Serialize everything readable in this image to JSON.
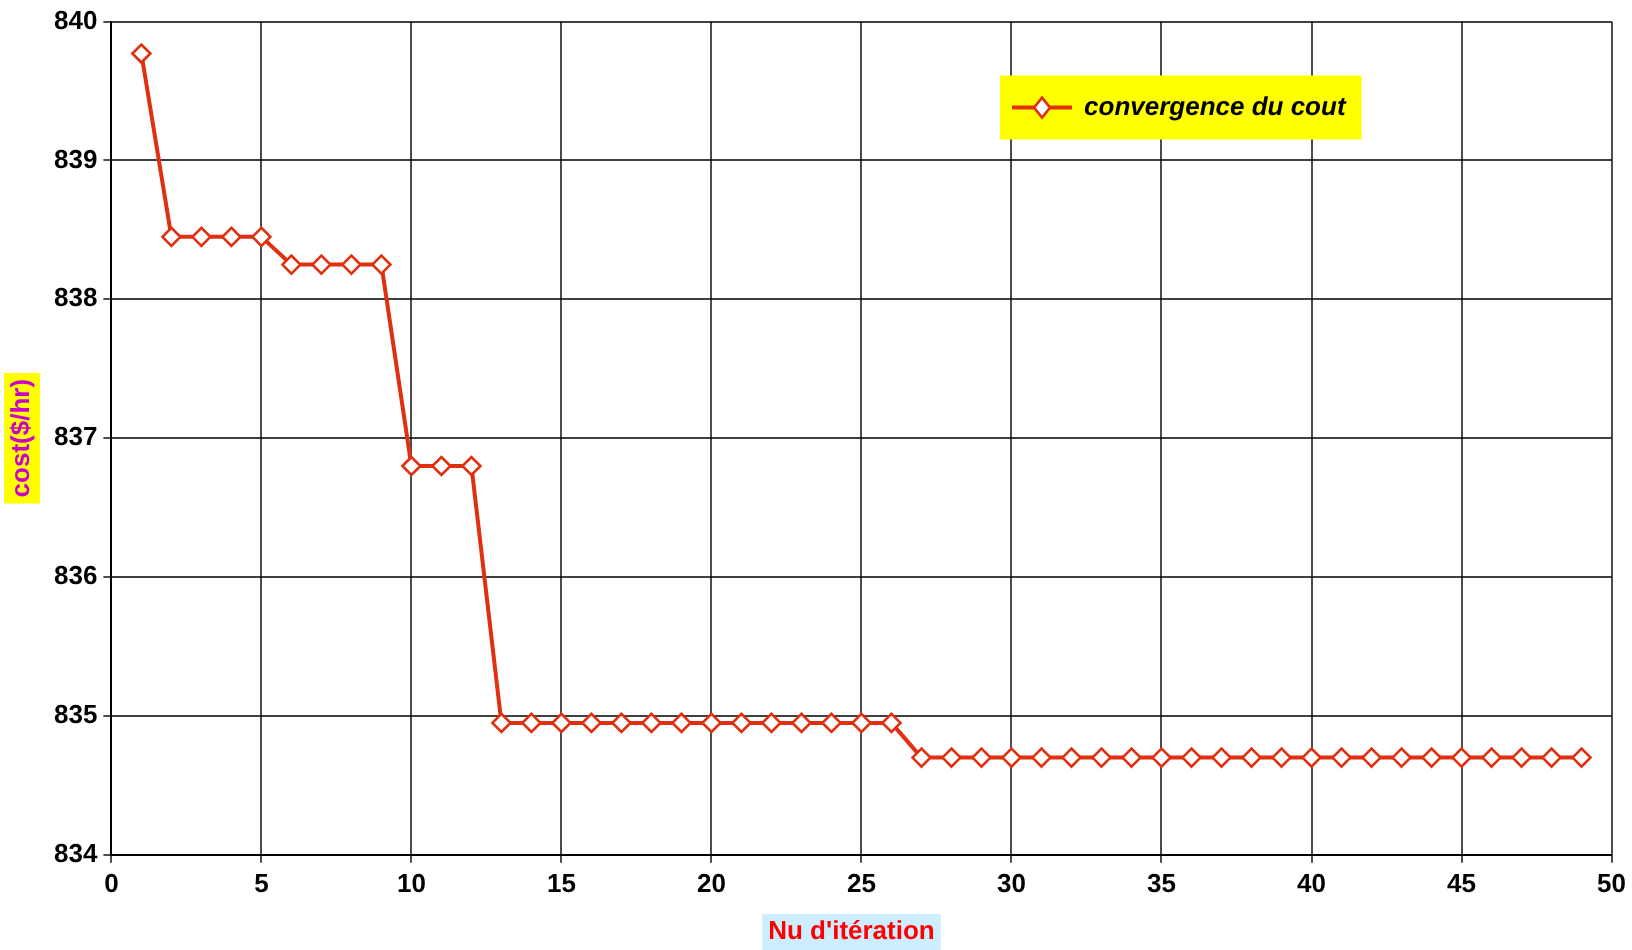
{
  "chart_data": {
    "type": "line",
    "xlabel": "Nu d'itération",
    "ylabel": "cost($/hr)",
    "x": [
      1,
      2,
      3,
      4,
      5,
      6,
      7,
      8,
      9,
      10,
      11,
      12,
      13,
      14,
      15,
      16,
      17,
      18,
      19,
      20,
      21,
      22,
      23,
      24,
      25,
      26,
      27,
      28,
      29,
      30,
      31,
      32,
      33,
      34,
      35,
      36,
      37,
      38,
      39,
      40,
      41,
      42,
      43,
      44,
      45,
      46,
      47,
      48,
      49
    ],
    "series": [
      {
        "name": "convergence du cout",
        "color": "#e03010",
        "values": [
          839.77,
          838.45,
          838.45,
          838.45,
          838.45,
          838.25,
          838.25,
          838.25,
          838.25,
          836.8,
          836.8,
          836.8,
          834.95,
          834.95,
          834.95,
          834.95,
          834.95,
          834.95,
          834.95,
          834.95,
          834.95,
          834.95,
          834.95,
          834.95,
          834.95,
          834.95,
          834.7,
          834.7,
          834.7,
          834.7,
          834.7,
          834.7,
          834.7,
          834.7,
          834.7,
          834.7,
          834.7,
          834.7,
          834.7,
          834.7,
          834.7,
          834.7,
          834.7,
          834.7,
          834.7,
          834.7,
          834.7,
          834.7,
          834.7
        ]
      }
    ],
    "xlim": [
      0,
      50
    ],
    "xticks": [
      0,
      5,
      10,
      15,
      20,
      25,
      30,
      35,
      40,
      45,
      50
    ],
    "ylim": [
      834,
      840
    ],
    "yticks": [
      834,
      835,
      836,
      837,
      838,
      839,
      840
    ],
    "grid": true,
    "legend": "top right",
    "marker": "diamond",
    "line_style": "solid"
  }
}
